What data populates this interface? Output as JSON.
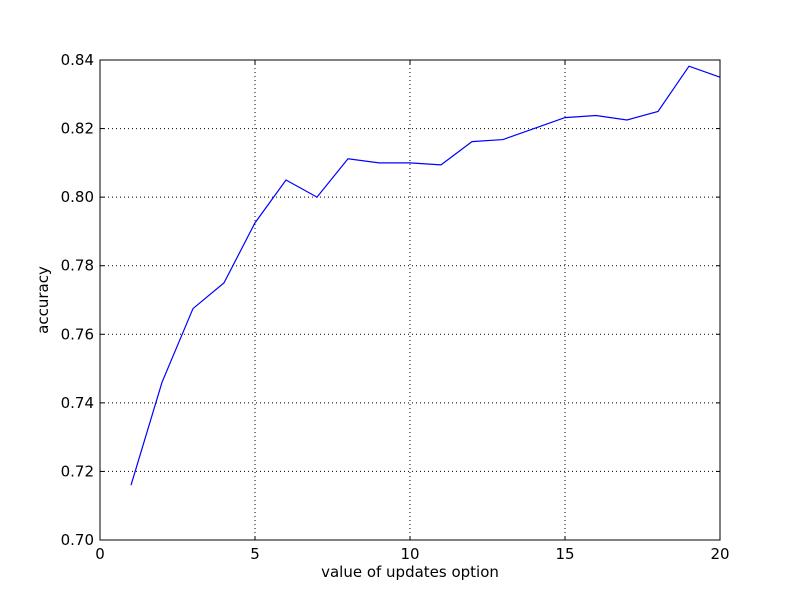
{
  "chart_data": {
    "type": "line",
    "title": "",
    "xlabel": "value of updates option",
    "ylabel": "accuracy",
    "xlim": [
      0,
      20
    ],
    "ylim": [
      0.7,
      0.84
    ],
    "grid": true,
    "x_ticks": [
      0,
      5,
      10,
      15,
      20
    ],
    "x_tick_labels": [
      "0",
      "5",
      "10",
      "15",
      "20"
    ],
    "y_ticks": [
      0.7,
      0.72,
      0.74,
      0.76,
      0.78,
      0.8,
      0.82,
      0.84
    ],
    "y_tick_labels": [
      "0.70",
      "0.72",
      "0.74",
      "0.76",
      "0.78",
      "0.80",
      "0.82",
      "0.84"
    ],
    "series": [
      {
        "color": "#0000ff",
        "x": [
          1,
          2,
          3,
          4,
          5,
          6,
          7,
          8,
          9,
          10,
          11,
          12,
          13,
          14,
          15,
          16,
          17,
          18,
          19,
          20
        ],
        "y": [
          0.716,
          0.746,
          0.7675,
          0.775,
          0.7925,
          0.805,
          0.8,
          0.8112,
          0.81,
          0.81,
          0.8094,
          0.8162,
          0.8168,
          0.82,
          0.8232,
          0.8238,
          0.8225,
          0.825,
          0.8382,
          0.835
        ]
      }
    ]
  }
}
